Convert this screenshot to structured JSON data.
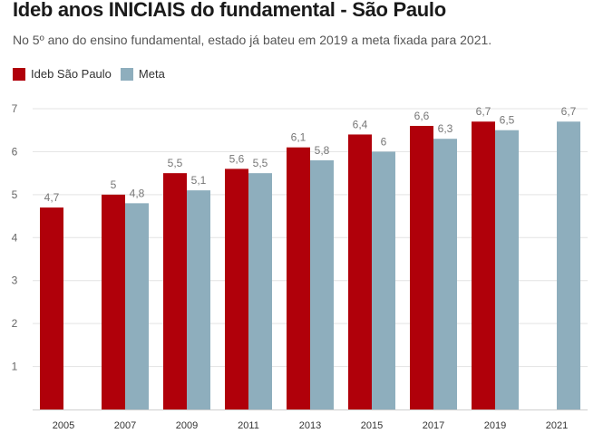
{
  "chart_data": {
    "type": "bar",
    "title": "Ideb anos INICIAIS do fundamental - São Paulo",
    "subtitle": "No 5º ano do ensino fundamental, estado já bateu em 2019 a meta fixada para 2021.",
    "categories": [
      "2005",
      "2007",
      "2009",
      "2011",
      "2013",
      "2015",
      "2017",
      "2019",
      "2021"
    ],
    "series": [
      {
        "name": "Ideb São Paulo",
        "color": "#b0000a",
        "values": [
          4.7,
          5,
          5.5,
          5.6,
          6.1,
          6.4,
          6.6,
          6.7,
          null
        ],
        "labels": [
          "4,7",
          "5",
          "5,5",
          "5,6",
          "6,1",
          "6,4",
          "6,6",
          "6,7",
          ""
        ]
      },
      {
        "name": "Meta",
        "color": "#8eaebd",
        "values": [
          null,
          4.8,
          5.1,
          5.5,
          5.8,
          6,
          6.3,
          6.5,
          6.7
        ],
        "labels": [
          "",
          "4,8",
          "5,1",
          "5,5",
          "5,8",
          "6",
          "6,3",
          "6,5",
          "6,7"
        ]
      }
    ],
    "yticks": [
      "1",
      "2",
      "3",
      "4",
      "5",
      "6",
      "7"
    ],
    "ylim": [
      0,
      7
    ],
    "grid": true,
    "legend_position": "top-left"
  }
}
